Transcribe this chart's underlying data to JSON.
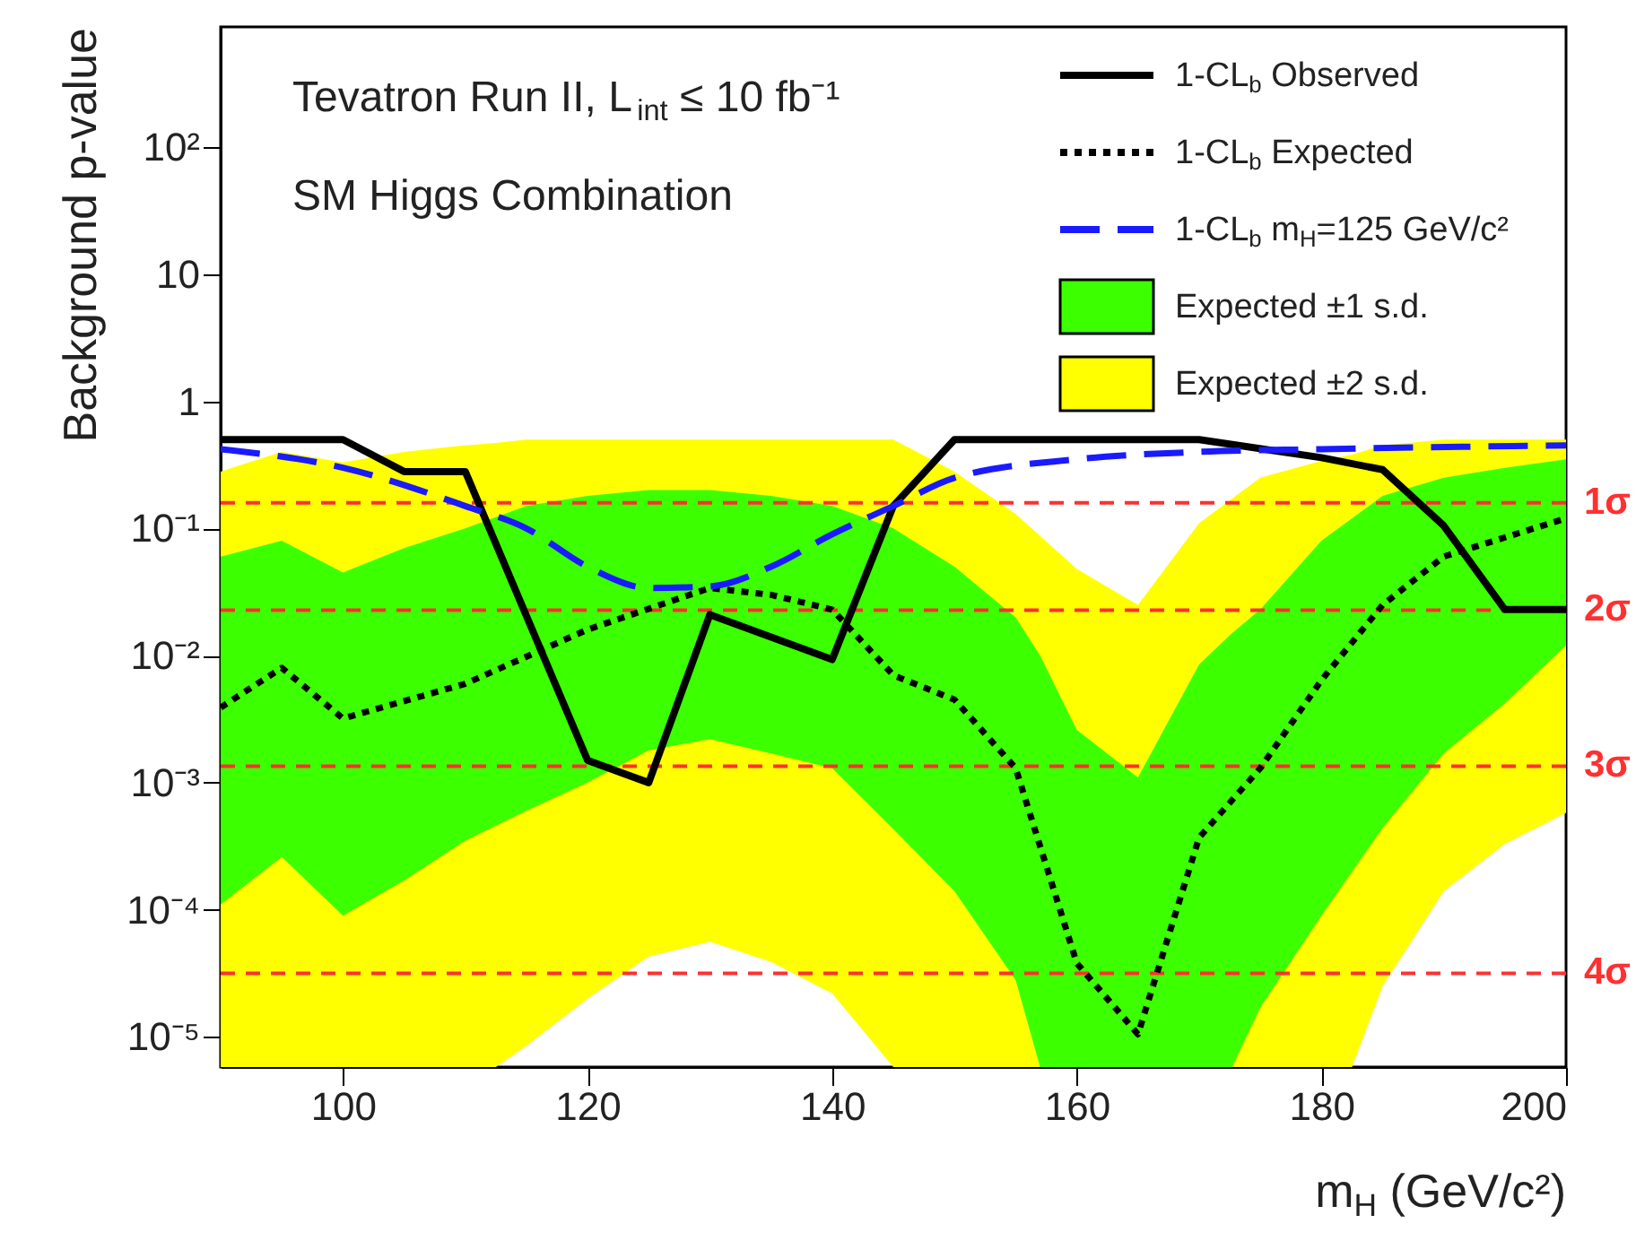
{
  "chart_data": {
    "type": "line",
    "xlabel": "m$_{H}$ (GeV/c²)",
    "ylabel": "Background p-value",
    "log": "y",
    "xlim": [
      90,
      200
    ],
    "xticks": [
      100,
      120,
      140,
      160,
      180,
      200
    ],
    "ylim": [
      5.8e-06,
      880
    ],
    "yticks": [
      {
        "value": 1e-05,
        "label": "10⁻⁵"
      },
      {
        "value": 0.0001,
        "label": "10⁻⁴"
      },
      {
        "value": 0.001,
        "label": "10⁻³"
      },
      {
        "value": 0.01,
        "label": "10⁻²"
      },
      {
        "value": 0.1,
        "label": "10⁻¹"
      },
      1,
      10,
      {
        "value": 100,
        "label": "10²"
      }
    ],
    "grid": false,
    "legend": "top right",
    "marker": "none",
    "annotations": [
      "Tevatron Run II, L$_{int}$ ≤ 10 fb⁻¹",
      "SM Higgs Combination"
    ],
    "series": [
      {
        "name": "Expected ±2 s.d.",
        "type": "area",
        "color": "#ffff00",
        "x": [
          90,
          95,
          100,
          105,
          110,
          112.5,
          115,
          120,
          125,
          130,
          135,
          140,
          145,
          150,
          155,
          160,
          165,
          170,
          175,
          180,
          182.5,
          185,
          190,
          195,
          200
        ],
        "values": [
          null,
          null,
          null,
          null,
          null,
          null,
          null,
          null,
          null,
          null,
          null,
          null,
          null,
          null,
          null,
          null,
          null,
          null,
          null,
          null,
          null,
          null,
          null,
          null,
          null
        ],
        "lower": [
          5.8e-06,
          5.8e-06,
          5.8e-06,
          5.8e-06,
          5.8e-06,
          5.8e-06,
          8.5e-06,
          2e-05,
          4.3e-05,
          5.6e-05,
          3.9e-05,
          2.2e-05,
          5.8e-06,
          5.8e-06,
          5.8e-06,
          5.8e-06,
          5.8e-06,
          5.8e-06,
          5.8e-06,
          5.8e-06,
          5.8e-06,
          2.5e-05,
          0.00014,
          0.00033,
          0.00058
        ],
        "upper": [
          0.28,
          0.4,
          0.33,
          0.4,
          0.45,
          0.47,
          0.5,
          0.5,
          0.5,
          0.5,
          0.5,
          0.5,
          0.5,
          0.28,
          0.13,
          0.048,
          0.025,
          0.11,
          0.25,
          0.34,
          0.38,
          0.45,
          0.5,
          0.5,
          0.5
        ]
      },
      {
        "name": "Expected ±1 s.d.",
        "type": "area",
        "color": "#3cff00",
        "x": [
          90,
          95,
          100,
          105,
          110,
          115,
          120,
          125,
          130,
          135,
          140,
          145,
          150,
          155,
          157,
          160,
          165,
          170,
          172.7,
          175,
          180,
          185,
          190,
          195,
          200
        ],
        "values": [
          null,
          null,
          null,
          null,
          null,
          null,
          null,
          null,
          null,
          null,
          null,
          null,
          null,
          null,
          null,
          null,
          null,
          null,
          null,
          null,
          null,
          null,
          null,
          null,
          null
        ],
        "lower": [
          0.00011,
          0.00026,
          9e-05,
          0.00017,
          0.00035,
          0.0006,
          0.001,
          0.0018,
          0.0022,
          0.0017,
          0.0013,
          0.00043,
          0.00014,
          2.8e-05,
          5.8e-06,
          5.8e-06,
          5.8e-06,
          5.8e-06,
          5.8e-06,
          1.7e-05,
          9e-05,
          0.00044,
          0.0017,
          0.0042,
          0.012
        ],
        "upper": [
          0.06,
          0.08,
          0.045,
          0.07,
          0.1,
          0.15,
          0.18,
          0.2,
          0.2,
          0.18,
          0.15,
          0.1,
          0.05,
          0.02,
          0.01,
          0.0026,
          0.0011,
          0.0085,
          0.015,
          0.023,
          0.08,
          0.18,
          0.25,
          0.3,
          0.35
        ]
      },
      {
        "name": "1-CL$_{b}$ Observed",
        "type": "line",
        "color": "#000000",
        "line_style": "solid",
        "x": [
          90,
          100,
          105,
          110,
          120,
          125,
          130,
          140,
          145,
          150,
          170,
          180,
          185,
          190,
          195,
          200
        ],
        "values": [
          0.5,
          0.5,
          0.28,
          0.28,
          0.0015,
          0.001,
          0.021,
          0.0093,
          0.15,
          0.5,
          0.5,
          0.36,
          0.29,
          0.105,
          0.023,
          0.023
        ]
      },
      {
        "name": "1-CL$_{b}$ Expected",
        "type": "line",
        "color": "#000000",
        "line_style": "dotted",
        "x": [
          90,
          95,
          100,
          110,
          120,
          130,
          135,
          140,
          145,
          150,
          155,
          160,
          165,
          170,
          175,
          180,
          185,
          190,
          200
        ],
        "values": [
          0.0039,
          0.008,
          0.0032,
          0.006,
          0.016,
          0.034,
          0.03,
          0.023,
          0.007,
          0.0045,
          0.0013,
          3.8e-05,
          1.05e-05,
          0.00037,
          0.0013,
          0.0064,
          0.025,
          0.06,
          0.12
        ]
      },
      {
        "name": "1-CL$_{b}$ m$_{H}$=125 GeV/c²",
        "type": "line",
        "color": "#1a1aff",
        "line_style": "dashed",
        "x": [
          90,
          100,
          110,
          115,
          120,
          125,
          130,
          135,
          140,
          145,
          150,
          160,
          170,
          180,
          200
        ],
        "values": [
          0.42,
          0.3,
          0.15,
          0.1,
          0.05,
          0.034,
          0.035,
          0.05,
          0.09,
          0.15,
          0.25,
          0.35,
          0.4,
          0.42,
          0.45
        ]
      }
    ],
    "ref_lines": [
      {
        "axis": "y",
        "value": 0.1587,
        "label": "1σ",
        "color": "#ff3030",
        "line_style": "dashed"
      },
      {
        "axis": "y",
        "value": 0.02275,
        "label": "2σ",
        "color": "#ff3030",
        "line_style": "dashed"
      },
      {
        "axis": "y",
        "value": 0.00135,
        "label": "3σ",
        "color": "#ff3030",
        "line_style": "dashed"
      },
      {
        "axis": "y",
        "value": 3.17e-05,
        "label": "4σ",
        "color": "#ff3030",
        "line_style": "dashed"
      }
    ]
  }
}
